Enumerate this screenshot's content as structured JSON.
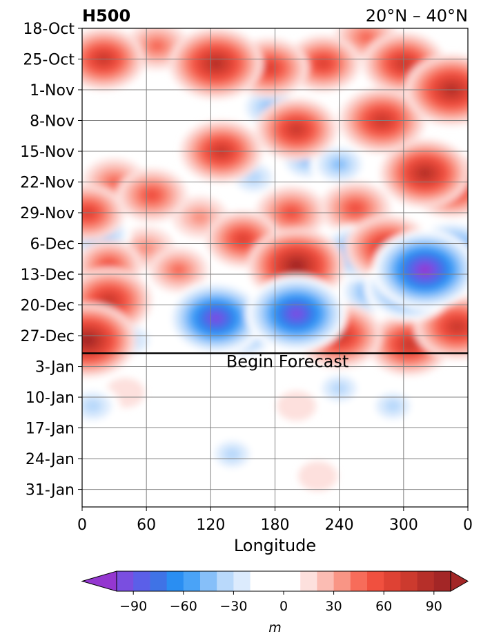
{
  "chart_data": {
    "type": "heatmap",
    "title_left": "H500",
    "title_right": "20°N – 40°N",
    "xlabel": "Longitude",
    "ylabel": "",
    "x_ticks": [
      "0",
      "60",
      "120",
      "180",
      "240",
      "300",
      "0"
    ],
    "x_tick_values": [
      0,
      60,
      120,
      180,
      240,
      300,
      360
    ],
    "xlim": [
      0,
      360
    ],
    "y_ticks": [
      "18-Oct",
      "25-Oct",
      "1-Nov",
      "8-Nov",
      "15-Nov",
      "22-Nov",
      "29-Nov",
      "6-Dec",
      "13-Dec",
      "20-Dec",
      "27-Dec",
      "3-Jan",
      "10-Jan",
      "17-Jan",
      "24-Jan",
      "31-Jan"
    ],
    "y_range": [
      "18-Oct",
      "4-Feb"
    ],
    "grid": true,
    "forecast_line_date": "31-Dec",
    "annotation": "Begin Forecast",
    "colorbar": {
      "label": "m",
      "levels": [
        -100,
        -90,
        -80,
        -70,
        -60,
        -50,
        -40,
        -30,
        -20,
        -10,
        10,
        20,
        30,
        40,
        50,
        60,
        70,
        80,
        90,
        100
      ],
      "ticks": [
        "−90",
        "−60",
        "−30",
        "0",
        "30",
        "60",
        "90"
      ],
      "tick_values": [
        -90,
        -60,
        -30,
        0,
        30,
        60,
        90
      ],
      "colors": [
        "#9437d0",
        "#7a4ee0",
        "#5b5fe8",
        "#3f73e6",
        "#2a8ef2",
        "#4aa3f7",
        "#86bff9",
        "#b9d9fb",
        "#dcebfd",
        "#ffffff",
        "#ffffff",
        "#fde0dd",
        "#fbbcb3",
        "#f99585",
        "#f76c5a",
        "#f0503f",
        "#de4234",
        "#cc3a2e",
        "#b62f29",
        "#a32626"
      ],
      "extend": "both"
    },
    "anomaly_centers": [
      {
        "lon": 20,
        "date": "25-Oct",
        "value": 70
      },
      {
        "lon": 70,
        "date": "22-Oct",
        "value": 45
      },
      {
        "lon": 125,
        "date": "26-Oct",
        "value": 85
      },
      {
        "lon": 175,
        "date": "27-Oct",
        "value": 65
      },
      {
        "lon": 225,
        "date": "26-Oct",
        "value": 60
      },
      {
        "lon": 300,
        "date": "26-Oct",
        "value": 70
      },
      {
        "lon": 345,
        "date": "1-Nov",
        "value": 85
      },
      {
        "lon": 265,
        "date": "20-Oct",
        "value": 45
      },
      {
        "lon": 175,
        "date": "5-Nov",
        "value": -45
      },
      {
        "lon": 200,
        "date": "10-Nov",
        "value": 70
      },
      {
        "lon": 280,
        "date": "8-Nov",
        "value": 75
      },
      {
        "lon": 210,
        "date": "17-Nov",
        "value": -40
      },
      {
        "lon": 130,
        "date": "15-Nov",
        "value": 70
      },
      {
        "lon": 320,
        "date": "20-Nov",
        "value": 80
      },
      {
        "lon": 345,
        "date": "23-Nov",
        "value": 70
      },
      {
        "lon": 65,
        "date": "25-Nov",
        "value": 55
      },
      {
        "lon": 30,
        "date": "22-Nov",
        "value": 45
      },
      {
        "lon": 5,
        "date": "29-Nov",
        "value": 60
      },
      {
        "lon": 15,
        "date": "4-Dec",
        "value": -50
      },
      {
        "lon": 160,
        "date": "21-Nov",
        "value": -35
      },
      {
        "lon": 240,
        "date": "18-Nov",
        "value": -40
      },
      {
        "lon": 255,
        "date": "28-Nov",
        "value": 55
      },
      {
        "lon": 195,
        "date": "29-Nov",
        "value": 55
      },
      {
        "lon": 150,
        "date": "5-Dec",
        "value": 60
      },
      {
        "lon": 200,
        "date": "11-Dec",
        "value": 90
      },
      {
        "lon": 255,
        "date": "8-Dec",
        "value": -60
      },
      {
        "lon": 285,
        "date": "7-Dec",
        "value": 75
      },
      {
        "lon": 320,
        "date": "12-Dec",
        "value": -100
      },
      {
        "lon": 345,
        "date": "8-Dec",
        "value": -75
      },
      {
        "lon": 305,
        "date": "16-Dec",
        "value": -80
      },
      {
        "lon": 270,
        "date": "17-Dec",
        "value": -50
      },
      {
        "lon": 200,
        "date": "22-Dec",
        "value": -95
      },
      {
        "lon": 125,
        "date": "23-Dec",
        "value": -90
      },
      {
        "lon": 150,
        "date": "26-Dec",
        "value": -60
      },
      {
        "lon": 25,
        "date": "19-Dec",
        "value": 75
      },
      {
        "lon": 25,
        "date": "11-Dec",
        "value": 50
      },
      {
        "lon": 5,
        "date": "28-Dec",
        "value": 90
      },
      {
        "lon": 45,
        "date": "28-Dec",
        "value": -35
      },
      {
        "lon": 240,
        "date": "27-Dec",
        "value": 75
      },
      {
        "lon": 275,
        "date": "28-Dec",
        "value": -45
      },
      {
        "lon": 305,
        "date": "29-Dec",
        "value": 70
      },
      {
        "lon": 350,
        "date": "25-Dec",
        "value": 75
      },
      {
        "lon": 90,
        "date": "12-Dec",
        "value": 40
      },
      {
        "lon": 60,
        "date": "7-Dec",
        "value": 35
      },
      {
        "lon": 110,
        "date": "30-Nov",
        "value": 35
      },
      {
        "lon": 240,
        "date": "8-Jan",
        "value": -30
      },
      {
        "lon": 10,
        "date": "12-Jan",
        "value": -35
      },
      {
        "lon": 140,
        "date": "23-Jan",
        "value": -30
      },
      {
        "lon": 290,
        "date": "12-Jan",
        "value": -30
      },
      {
        "lon": 220,
        "date": "28-Jan",
        "value": 15
      },
      {
        "lon": 40,
        "date": "9-Jan",
        "value": 15
      },
      {
        "lon": 200,
        "date": "12-Jan",
        "value": 15
      }
    ]
  }
}
